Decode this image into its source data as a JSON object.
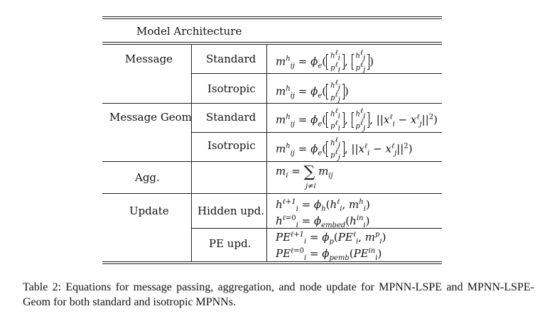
{
  "table": {
    "title": "Model Architecture",
    "rows": [
      {
        "section": "Message",
        "variant": "Standard",
        "equation_id": "msg_standard"
      },
      {
        "section": "",
        "variant": "Isotropic",
        "equation_id": "msg_isotropic"
      },
      {
        "section": "Message Geom",
        "variant": "Standard",
        "equation_id": "geom_standard"
      },
      {
        "section": "",
        "variant": "Isotropic",
        "equation_id": "geom_isotropic"
      },
      {
        "section": "Agg.",
        "variant": "",
        "equation_id": "agg"
      },
      {
        "section": "Update",
        "variant": "Hidden upd.",
        "equation_id": "hidden_upd"
      },
      {
        "section": "",
        "variant": "PE upd.",
        "equation_id": "pe_upd"
      }
    ],
    "section_labels": {
      "message": "Message",
      "message_geom": "Message Geom",
      "agg": "Agg.",
      "update": "Update"
    },
    "variant_labels": {
      "standard_1": "Standard",
      "isotropic_1": "Isotropic",
      "standard_2": "Standard",
      "isotropic_2": "Isotropic",
      "hidden": "Hidden upd.",
      "pe": "PE upd."
    }
  },
  "caption": {
    "text": "Table 2: Equations for message passing, aggregation, and node update for MPNN-LSPE and MPNN-LSPE-Geom for both standard and isotropic MPNNs."
  }
}
